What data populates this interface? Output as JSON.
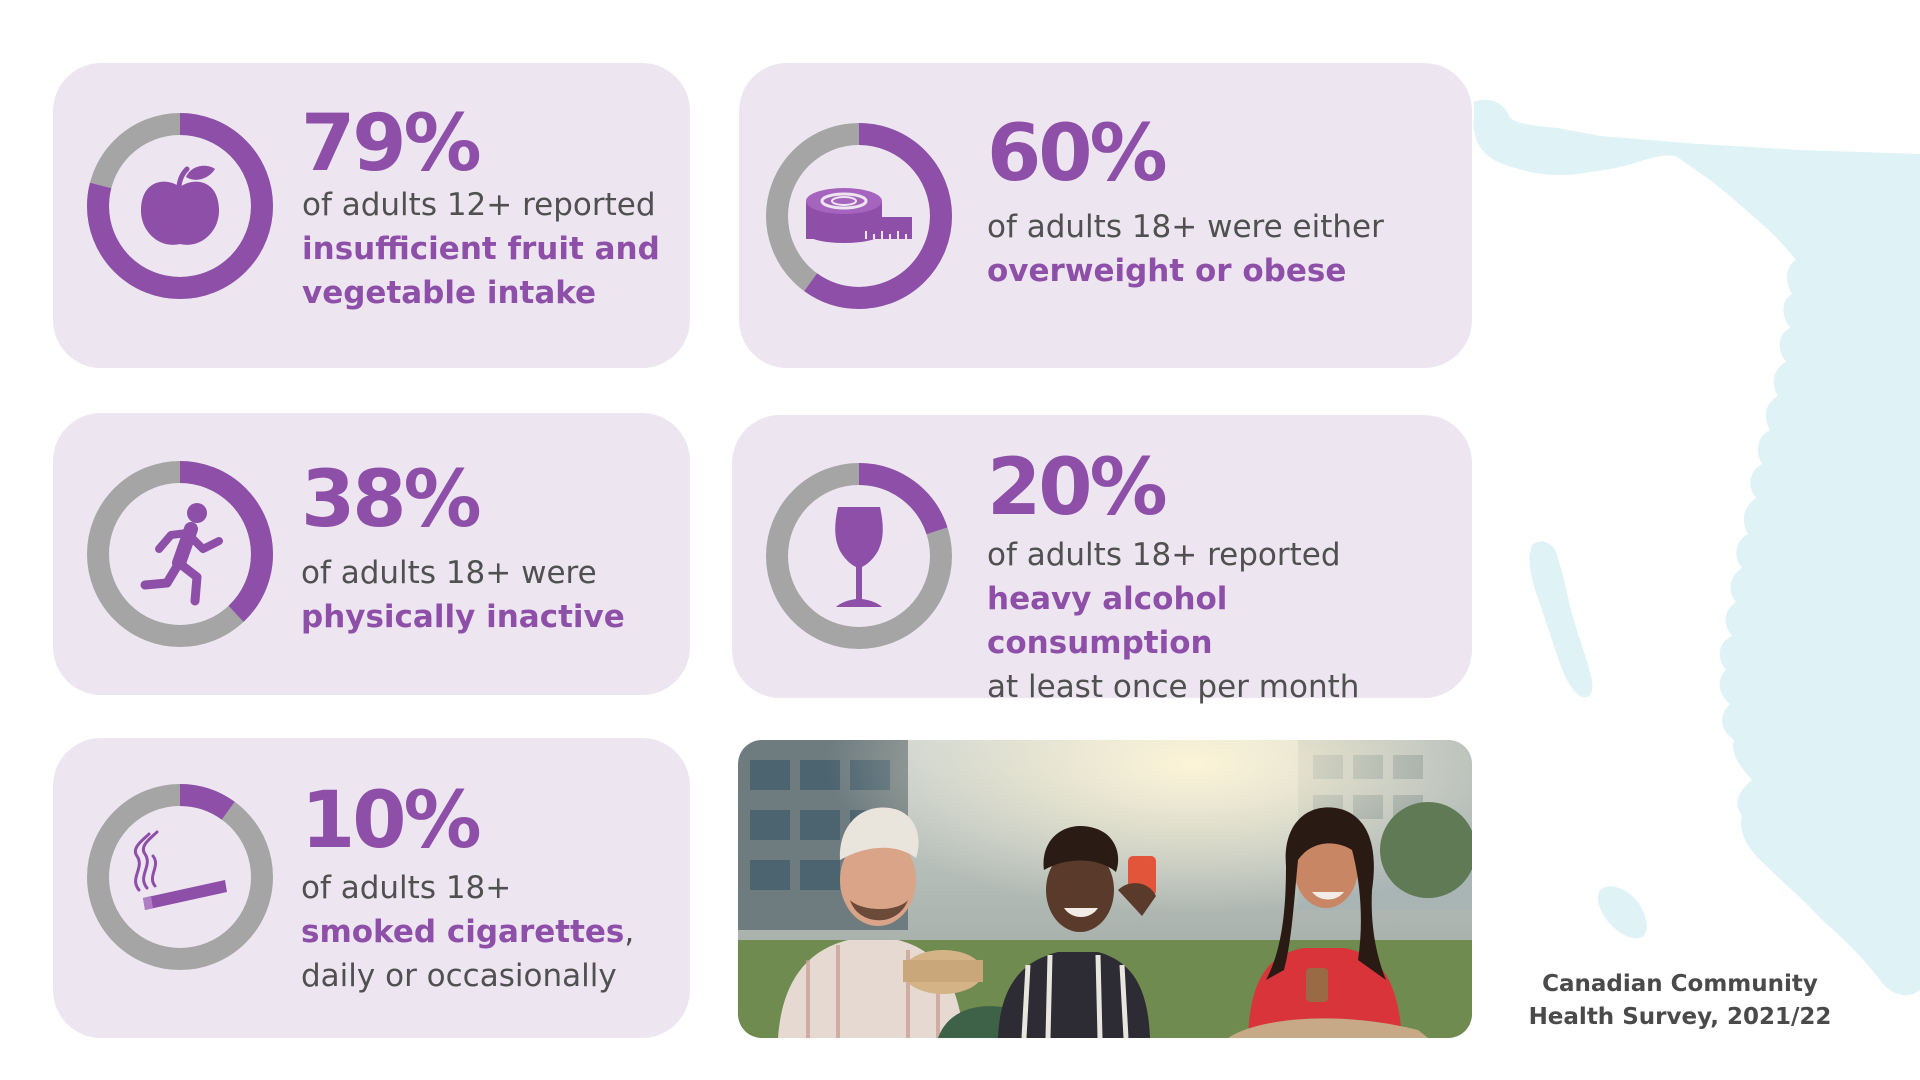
{
  "colors": {
    "accent": "#8e4fa8",
    "ring_track": "#a5a5a5",
    "card_bg": "#ede6f1",
    "map": "#dff3f7",
    "body_text": "#505050"
  },
  "stats": [
    {
      "percent": "79%",
      "value": 79,
      "icon": "apple-icon",
      "pre": "of adults 12+ reported",
      "highlight": "insufficient fruit and vegetable intake",
      "post": ""
    },
    {
      "percent": "60%",
      "value": 60,
      "icon": "measuring-tape-icon",
      "pre": "of adults 18+ were either",
      "highlight": "overweight or obese",
      "post": ""
    },
    {
      "percent": "38%",
      "value": 38,
      "icon": "running-person-icon",
      "pre": "of adults 18+ were",
      "highlight": "physically inactive",
      "post": ""
    },
    {
      "percent": "20%",
      "value": 20,
      "icon": "wine-glass-icon",
      "pre": "of adults 18+ reported",
      "highlight": "heavy alcohol consumption",
      "post": "at least once per month"
    },
    {
      "percent": "10%",
      "value": 10,
      "icon": "cigarette-icon",
      "pre": "of adults 18+",
      "highlight": "smoked cigarettes",
      "post": ", daily or occasionally"
    }
  ],
  "photo": {
    "icon": "group-of-friends-photo"
  },
  "source": {
    "line1": "Canadian Community",
    "line2": "Health Survey, 2021/22"
  }
}
